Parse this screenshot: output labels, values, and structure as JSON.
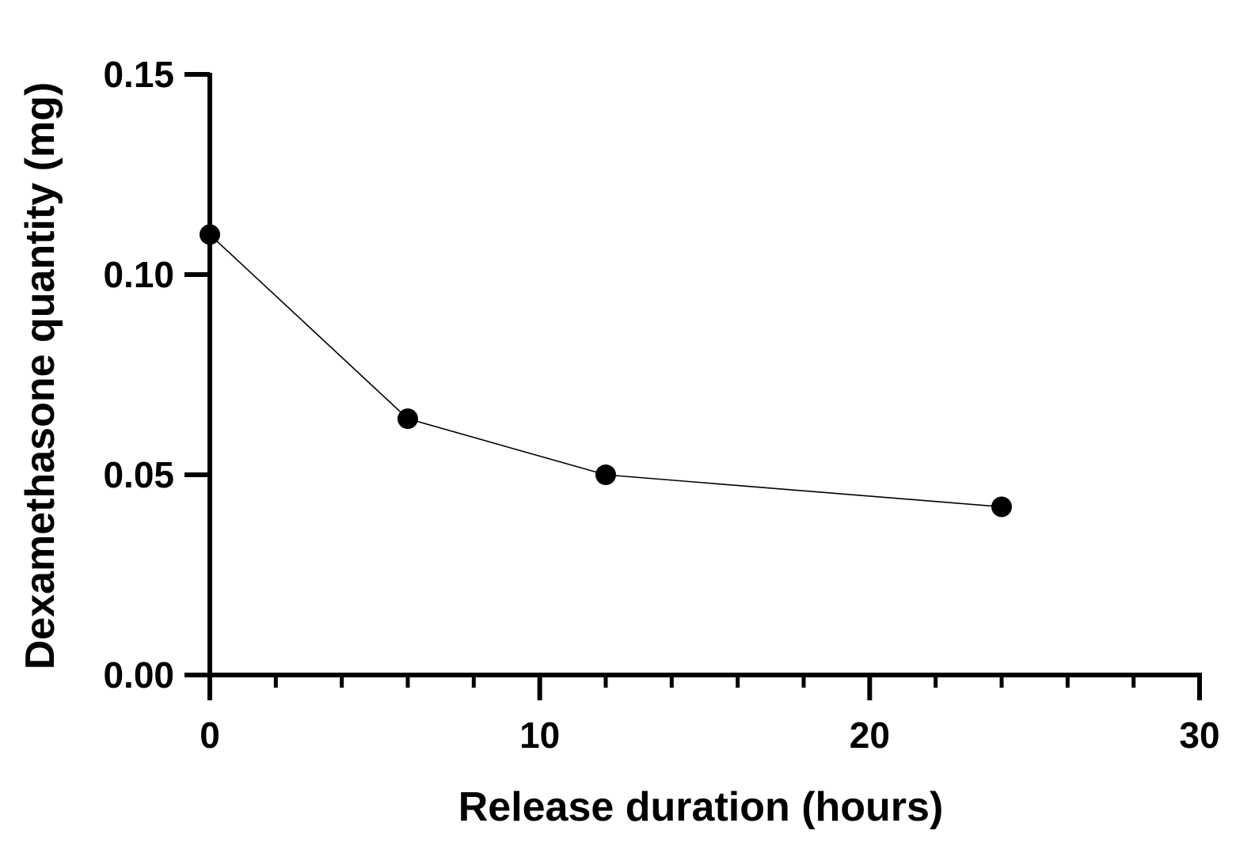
{
  "chart_data": {
    "type": "line",
    "title": "",
    "xlabel": "Release duration (hours)",
    "ylabel": "Dexamethasone quantity (mg)",
    "xlim": [
      0,
      30
    ],
    "ylim": [
      0,
      0.15
    ],
    "x_ticks": [
      "0",
      "10",
      "20",
      "30"
    ],
    "y_ticks": [
      "0.00",
      "0.05",
      "0.10",
      "0.15"
    ],
    "grid": false,
    "legend": "none",
    "series": [
      {
        "x": [
          0,
          6,
          12,
          24
        ],
        "y": [
          0.11,
          0.064,
          0.05,
          0.042
        ]
      }
    ],
    "colors": {
      "line": "#000000",
      "marker": "#000000",
      "axis": "#000000"
    }
  }
}
